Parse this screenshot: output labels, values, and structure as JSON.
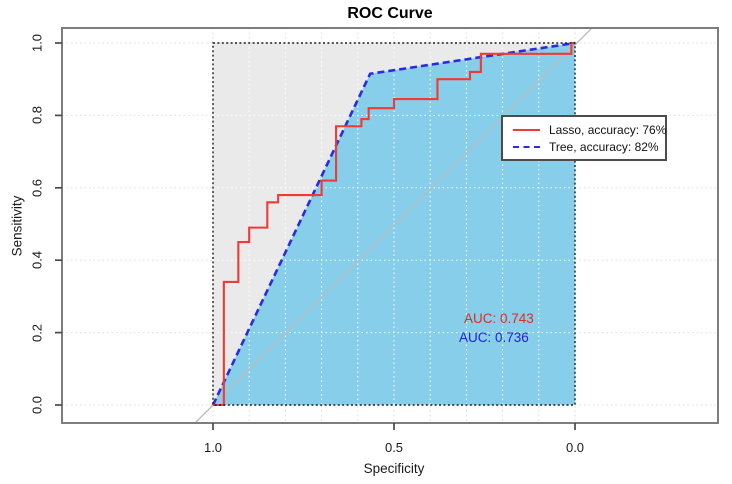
{
  "title": "ROC Curve",
  "axes": {
    "x": {
      "label": "Specificity",
      "ticks": [
        "1.0",
        "0.5",
        "0.0"
      ]
    },
    "y": {
      "label": "Sensitivity",
      "ticks": [
        "0.0",
        "0.2",
        "0.4",
        "0.6",
        "0.8",
        "1.0"
      ]
    }
  },
  "legend": {
    "items": [
      {
        "label": "Lasso, accuracy: 76%",
        "color": "#ee3b33",
        "line_style": "solid"
      },
      {
        "label": "Tree, accuracy: 82%",
        "color": "#2a2ae0",
        "line_style": "dashed"
      }
    ]
  },
  "annotations": [
    {
      "text": "AUC: 0.743",
      "color": "#dd2c20",
      "series": "Lasso"
    },
    {
      "text": "AUC: 0.736",
      "color": "#2121dd",
      "series": "Tree"
    }
  ],
  "colors": {
    "lasso_line": "#ee3b33",
    "tree_line": "#2a2ae0",
    "tree_fill": "#87ceeb",
    "panel_shade": "#eaeaea",
    "diagonal": "#bcbcbc",
    "grid_outside": "#dcdcdc",
    "grid_inside": "#ffffff",
    "box": "#7d7d7d",
    "tick": "#4a4a4a",
    "square_border": "#1c1c1c"
  },
  "chart_data": {
    "type": "line",
    "title": "ROC Curve",
    "xlabel": "Specificity",
    "ylabel": "Sensitivity",
    "xlim": [
      1.0,
      0.0
    ],
    "ylim": [
      0.0,
      1.0
    ],
    "x_axis_reversed": true,
    "x_ticks": [
      1.0,
      0.5,
      0.0
    ],
    "y_ticks": [
      0.0,
      0.2,
      0.4,
      0.6,
      0.8,
      1.0
    ],
    "grid": "dotted; vertical every 0.1, horizontal every 0.2",
    "legend_position": "right-center",
    "diagonal_reference_line": true,
    "shaded_unit_square": true,
    "series": [
      {
        "name": "Lasso, accuracy: 76%",
        "auc": 0.743,
        "accuracy_pct": 76,
        "curve_type": "step",
        "color": "red",
        "line_style": "solid",
        "points_fpr_tpr": [
          [
            0.0,
            0.0
          ],
          [
            0.03,
            0.0
          ],
          [
            0.03,
            0.34
          ],
          [
            0.07,
            0.34
          ],
          [
            0.07,
            0.45
          ],
          [
            0.1,
            0.45
          ],
          [
            0.1,
            0.49
          ],
          [
            0.15,
            0.49
          ],
          [
            0.15,
            0.56
          ],
          [
            0.18,
            0.56
          ],
          [
            0.18,
            0.58
          ],
          [
            0.3,
            0.58
          ],
          [
            0.3,
            0.62
          ],
          [
            0.34,
            0.62
          ],
          [
            0.34,
            0.77
          ],
          [
            0.41,
            0.77
          ],
          [
            0.41,
            0.79
          ],
          [
            0.43,
            0.79
          ],
          [
            0.43,
            0.82
          ],
          [
            0.5,
            0.82
          ],
          [
            0.5,
            0.845
          ],
          [
            0.62,
            0.845
          ],
          [
            0.62,
            0.9
          ],
          [
            0.71,
            0.9
          ],
          [
            0.71,
            0.92
          ],
          [
            0.74,
            0.92
          ],
          [
            0.74,
            0.97
          ],
          [
            0.99,
            0.97
          ],
          [
            0.99,
            1.0
          ],
          [
            1.0,
            1.0
          ]
        ]
      },
      {
        "name": "Tree, accuracy: 82%",
        "auc": 0.736,
        "accuracy_pct": 82,
        "curve_type": "line",
        "color": "blue",
        "line_style": "dashed",
        "fill_below": true,
        "points_fpr_tpr": [
          [
            0.0,
            0.0
          ],
          [
            0.434,
            0.915
          ],
          [
            1.0,
            1.0
          ]
        ]
      }
    ]
  }
}
